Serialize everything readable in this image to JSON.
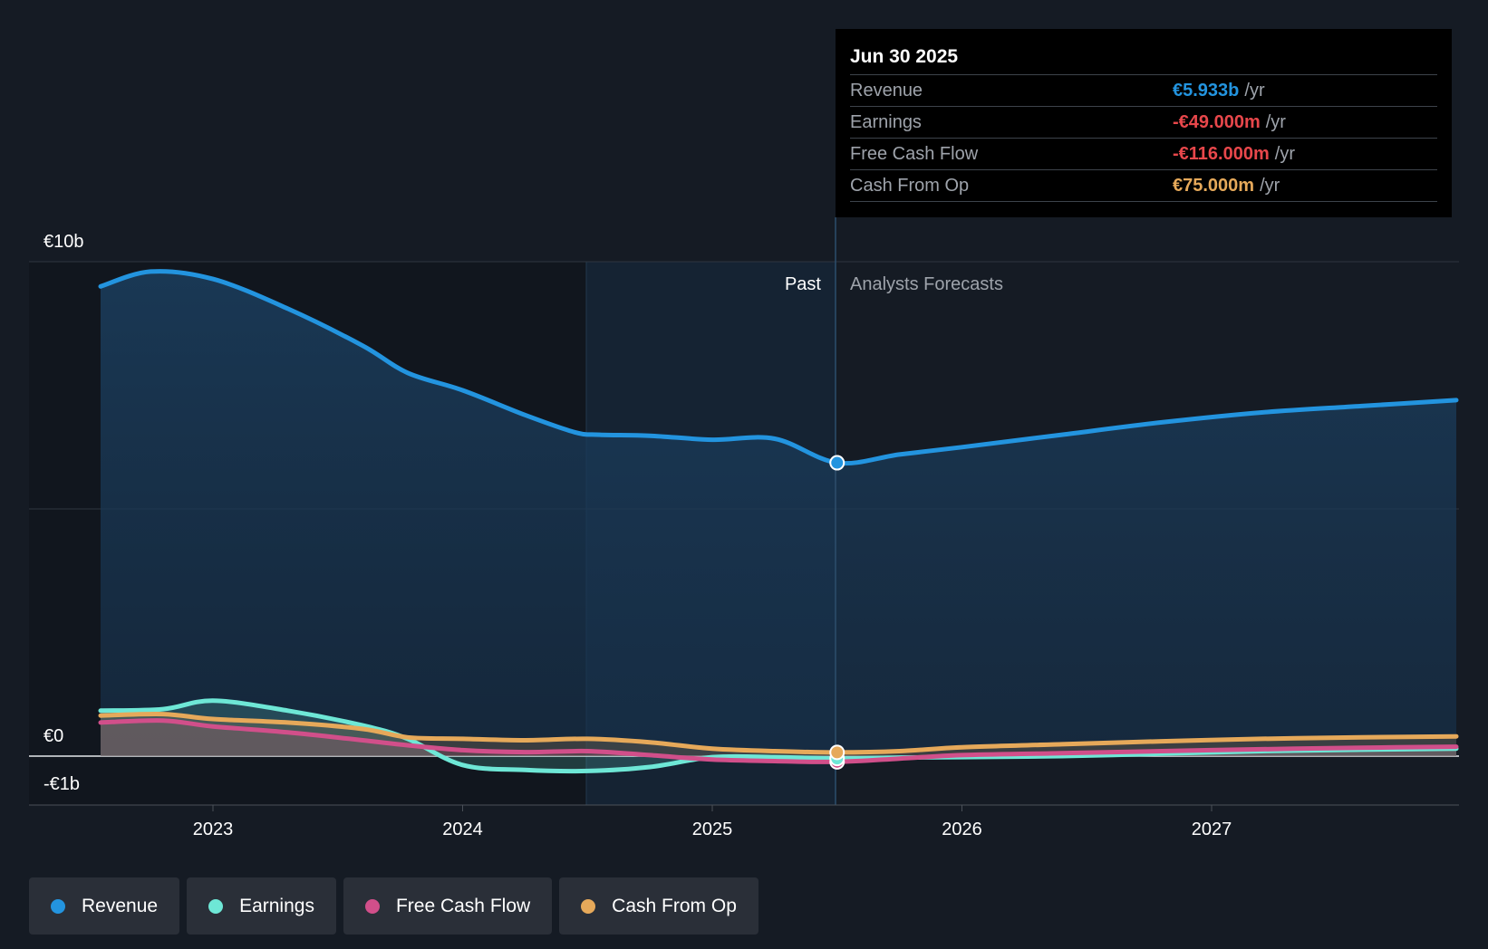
{
  "chart_data": {
    "type": "area",
    "x_ticks": [
      "2023",
      "2024",
      "2025",
      "2026",
      "2027"
    ],
    "y_ticks": [
      {
        "label": "€10b",
        "value": 10
      },
      {
        "label": "€0",
        "value": 0
      },
      {
        "label": "-€1b",
        "value": -1
      }
    ],
    "ylim": [
      -1,
      10
    ],
    "xlim": [
      2022.55,
      2027.98
    ],
    "past_label": "Past",
    "forecast_label": "Analysts Forecasts",
    "divider_x": 2025.5,
    "highlight_start_x": 2024.5,
    "unit": "€b",
    "series": [
      {
        "name": "Revenue",
        "color": "#2394df",
        "x": [
          2022.55,
          2022.75,
          2023.0,
          2023.3,
          2023.6,
          2023.78,
          2024.0,
          2024.25,
          2024.45,
          2024.55,
          2024.75,
          2025.0,
          2025.25,
          2025.5,
          2025.75,
          2026.0,
          2026.4,
          2026.8,
          2027.2,
          2027.6,
          2027.98
        ],
        "y": [
          9.5,
          9.8,
          9.65,
          9.05,
          8.3,
          7.75,
          7.4,
          6.9,
          6.55,
          6.5,
          6.48,
          6.4,
          6.42,
          5.933,
          6.1,
          6.25,
          6.5,
          6.75,
          6.95,
          7.08,
          7.2
        ]
      },
      {
        "name": "Earnings",
        "color": "#6ee7d6",
        "x": [
          2022.55,
          2022.8,
          2023.0,
          2023.3,
          2023.6,
          2023.78,
          2024.0,
          2024.25,
          2024.5,
          2024.75,
          2025.0,
          2025.25,
          2025.5,
          2025.75,
          2026.0,
          2026.4,
          2026.8,
          2027.2,
          2027.6,
          2027.98
        ],
        "y": [
          0.92,
          0.95,
          1.12,
          0.92,
          0.62,
          0.35,
          -0.18,
          -0.28,
          -0.3,
          -0.22,
          -0.02,
          -0.02,
          -0.049,
          -0.03,
          -0.02,
          0.0,
          0.05,
          0.1,
          0.13,
          0.15
        ]
      },
      {
        "name": "Free Cash Flow",
        "color": "#d14f8a",
        "x": [
          2022.55,
          2022.8,
          2023.0,
          2023.3,
          2023.6,
          2023.78,
          2024.0,
          2024.25,
          2024.5,
          2024.75,
          2025.0,
          2025.25,
          2025.5,
          2025.75,
          2026.0,
          2026.4,
          2026.8,
          2027.2,
          2027.6,
          2027.98
        ],
        "y": [
          0.68,
          0.72,
          0.6,
          0.48,
          0.32,
          0.22,
          0.12,
          0.08,
          0.1,
          0.02,
          -0.07,
          -0.1,
          -0.116,
          -0.05,
          0.02,
          0.06,
          0.1,
          0.14,
          0.17,
          0.19
        ]
      },
      {
        "name": "Cash From Op",
        "color": "#e6a95a",
        "x": [
          2022.55,
          2022.8,
          2023.0,
          2023.3,
          2023.6,
          2023.78,
          2024.0,
          2024.25,
          2024.5,
          2024.75,
          2025.0,
          2025.25,
          2025.5,
          2025.75,
          2026.0,
          2026.4,
          2026.8,
          2027.2,
          2027.6,
          2027.98
        ],
        "y": [
          0.82,
          0.85,
          0.75,
          0.68,
          0.55,
          0.38,
          0.35,
          0.32,
          0.35,
          0.28,
          0.15,
          0.1,
          0.075,
          0.1,
          0.18,
          0.24,
          0.3,
          0.35,
          0.38,
          0.4
        ]
      }
    ]
  },
  "tooltip": {
    "date": "Jun 30 2025",
    "rows": [
      {
        "label": "Revenue",
        "value": "€5.933b",
        "unit": "/yr",
        "color": "#2394df"
      },
      {
        "label": "Earnings",
        "value": "-€49.000m",
        "unit": "/yr",
        "color": "#e8474b"
      },
      {
        "label": "Free Cash Flow",
        "value": "-€116.000m",
        "unit": "/yr",
        "color": "#e8474b"
      },
      {
        "label": "Cash From Op",
        "value": "€75.000m",
        "unit": "/yr",
        "color": "#e6a95a"
      }
    ]
  },
  "legend": [
    {
      "label": "Revenue",
      "color": "#2394df"
    },
    {
      "label": "Earnings",
      "color": "#6ee7d6"
    },
    {
      "label": "Free Cash Flow",
      "color": "#d14f8a"
    },
    {
      "label": "Cash From Op",
      "color": "#e6a95a"
    }
  ]
}
